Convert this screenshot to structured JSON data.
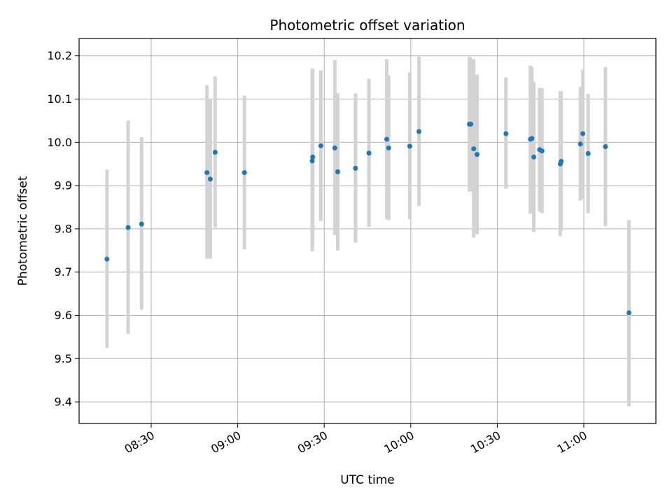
{
  "chart_data": {
    "type": "scatter",
    "title": "Photometric offset variation",
    "xlabel": "UTC time",
    "ylabel": "Photometric offset",
    "x_unit": "HH:MM UTC",
    "xlim": [
      "08:05",
      "11:25"
    ],
    "ylim": [
      9.35,
      10.24
    ],
    "x_ticks": [
      "08:30",
      "09:00",
      "09:30",
      "10:00",
      "10:30",
      "11:00"
    ],
    "y_ticks": [
      "9.4",
      "9.5",
      "9.6",
      "9.7",
      "9.8",
      "9.9",
      "10.0",
      "10.1",
      "10.2"
    ],
    "grid": true,
    "point_color": "#1f77b4",
    "errorbar_color": "#d3d3d3",
    "points": [
      {
        "x": "08:14:40",
        "y": 9.73,
        "ylow": 9.525,
        "yhigh": 9.937
      },
      {
        "x": "08:22:00",
        "y": 9.803,
        "ylow": 9.557,
        "yhigh": 10.05
      },
      {
        "x": "08:26:40",
        "y": 9.811,
        "ylow": 9.613,
        "yhigh": 10.012
      },
      {
        "x": "08:49:20",
        "y": 9.93,
        "ylow": 9.731,
        "yhigh": 10.132
      },
      {
        "x": "08:50:30",
        "y": 9.915,
        "ylow": 9.731,
        "yhigh": 10.1
      },
      {
        "x": "08:52:10",
        "y": 9.977,
        "ylow": 9.803,
        "yhigh": 10.152
      },
      {
        "x": "09:02:20",
        "y": 9.93,
        "ylow": 9.753,
        "yhigh": 10.108
      },
      {
        "x": "09:25:50",
        "y": 9.957,
        "ylow": 9.748,
        "yhigh": 10.17
      },
      {
        "x": "09:26:00",
        "y": 9.966,
        "ylow": 9.76,
        "yhigh": 10.17
      },
      {
        "x": "09:28:50",
        "y": 9.992,
        "ylow": 9.818,
        "yhigh": 10.166
      },
      {
        "x": "09:33:40",
        "y": 9.987,
        "ylow": 9.785,
        "yhigh": 10.19
      },
      {
        "x": "09:34:40",
        "y": 9.932,
        "ylow": 9.75,
        "yhigh": 10.114
      },
      {
        "x": "09:40:50",
        "y": 9.94,
        "ylow": 9.768,
        "yhigh": 10.113
      },
      {
        "x": "09:45:30",
        "y": 9.975,
        "ylow": 9.805,
        "yhigh": 10.147
      },
      {
        "x": "09:51:40",
        "y": 10.007,
        "ylow": 9.823,
        "yhigh": 10.192
      },
      {
        "x": "09:52:20",
        "y": 9.987,
        "ylow": 9.82,
        "yhigh": 10.155
      },
      {
        "x": "09:59:40",
        "y": 9.991,
        "ylow": 9.822,
        "yhigh": 10.162
      },
      {
        "x": "10:02:50",
        "y": 10.025,
        "ylow": 9.853,
        "yhigh": 10.198
      },
      {
        "x": "10:20:20",
        "y": 10.042,
        "ylow": 9.886,
        "yhigh": 10.198
      },
      {
        "x": "10:20:50",
        "y": 10.042,
        "ylow": 9.886,
        "yhigh": 10.195
      },
      {
        "x": "10:21:50",
        "y": 9.985,
        "ylow": 9.78,
        "yhigh": 10.192
      },
      {
        "x": "10:23:00",
        "y": 9.972,
        "ylow": 9.788,
        "yhigh": 10.156
      },
      {
        "x": "10:33:00",
        "y": 10.02,
        "ylow": 9.893,
        "yhigh": 10.15
      },
      {
        "x": "10:41:30",
        "y": 10.007,
        "ylow": 9.835,
        "yhigh": 10.177
      },
      {
        "x": "10:42:00",
        "y": 10.009,
        "ylow": 9.842,
        "yhigh": 10.173
      },
      {
        "x": "10:42:40",
        "y": 9.966,
        "ylow": 9.793,
        "yhigh": 10.139
      },
      {
        "x": "10:44:40",
        "y": 9.983,
        "ylow": 9.84,
        "yhigh": 10.126
      },
      {
        "x": "10:45:30",
        "y": 9.98,
        "ylow": 9.836,
        "yhigh": 10.125
      },
      {
        "x": "10:51:50",
        "y": 9.95,
        "ylow": 9.783,
        "yhigh": 10.118
      },
      {
        "x": "10:52:10",
        "y": 9.956,
        "ylow": 9.796,
        "yhigh": 10.118
      },
      {
        "x": "10:58:50",
        "y": 9.996,
        "ylow": 9.865,
        "yhigh": 10.128
      },
      {
        "x": "10:59:40",
        "y": 10.02,
        "ylow": 9.87,
        "yhigh": 10.168
      },
      {
        "x": "11:01:30",
        "y": 9.974,
        "ylow": 9.836,
        "yhigh": 10.112
      },
      {
        "x": "11:07:30",
        "y": 9.99,
        "ylow": 9.806,
        "yhigh": 10.174
      },
      {
        "x": "11:15:40",
        "y": 9.606,
        "ylow": 9.39,
        "yhigh": 9.82
      }
    ]
  }
}
